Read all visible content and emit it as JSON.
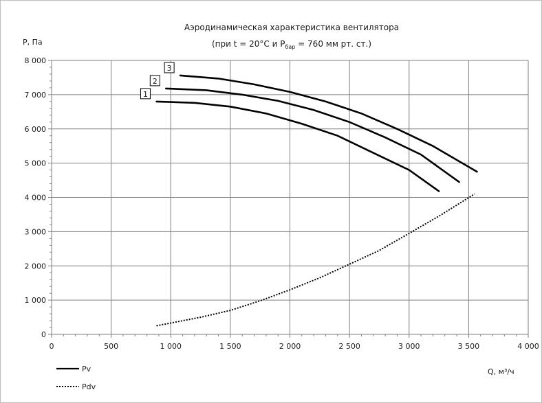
{
  "chart_data": {
    "type": "line",
    "title": "Аэродинамическая характеристика вентилятора",
    "subtitle": {
      "pre": "(при t = 20°C и P",
      "sub": "бар",
      "post": " = 760 мм рт. ст.)"
    },
    "ylabel": "P, Па",
    "xlabel": "Q, м³/ч",
    "xlim": [
      0,
      4000
    ],
    "ylim": [
      0,
      8000
    ],
    "x_ticks": [
      0,
      500,
      1000,
      1500,
      2000,
      2500,
      3000,
      3500,
      4000
    ],
    "y_ticks": [
      0,
      1000,
      2000,
      3000,
      4000,
      5000,
      6000,
      7000,
      8000
    ],
    "x_tick_labels": [
      "0",
      "500",
      "1 000",
      "1 500",
      "2 000",
      "2 500",
      "3 000",
      "3 500",
      "4 000"
    ],
    "y_tick_labels": [
      "0",
      "1 000",
      "2 000",
      "3 000",
      "4 000",
      "5 000",
      "6 000",
      "7 000",
      "8 000"
    ],
    "grid": true,
    "series": [
      {
        "name": "Pv",
        "curve_label": "1",
        "style": "solid",
        "x": [
          880,
          1200,
          1500,
          1800,
          2100,
          2400,
          2700,
          3000,
          3250
        ],
        "y": [
          6800,
          6760,
          6650,
          6450,
          6150,
          5800,
          5300,
          4800,
          4180
        ]
      },
      {
        "name": "Pv",
        "curve_label": "2",
        "style": "solid",
        "x": [
          960,
          1300,
          1600,
          1900,
          2200,
          2500,
          2800,
          3100,
          3420
        ],
        "y": [
          7180,
          7130,
          7000,
          6820,
          6550,
          6200,
          5750,
          5250,
          4450
        ]
      },
      {
        "name": "Pv",
        "curve_label": "3",
        "style": "solid",
        "x": [
          1080,
          1400,
          1700,
          2000,
          2300,
          2600,
          2900,
          3200,
          3570
        ],
        "y": [
          7560,
          7470,
          7300,
          7080,
          6800,
          6450,
          6000,
          5500,
          4750
        ]
      },
      {
        "name": "Pdv",
        "style": "dotted",
        "x": [
          880,
          1000,
          1250,
          1500,
          1750,
          2000,
          2250,
          2500,
          2750,
          3000,
          3250,
          3550
        ],
        "y": [
          250,
          330,
          500,
          700,
          980,
          1300,
          1650,
          2050,
          2450,
          2950,
          3450,
          4100
        ]
      }
    ],
    "legend": {
      "placement": "bottom-left",
      "entries": [
        {
          "label": "Pv",
          "style": "solid"
        },
        {
          "label": "Pdv",
          "style": "dotted"
        }
      ]
    },
    "colors": {
      "line": "#000000",
      "grid": "#7f7f7f",
      "frame": "#bfbfbf"
    }
  }
}
